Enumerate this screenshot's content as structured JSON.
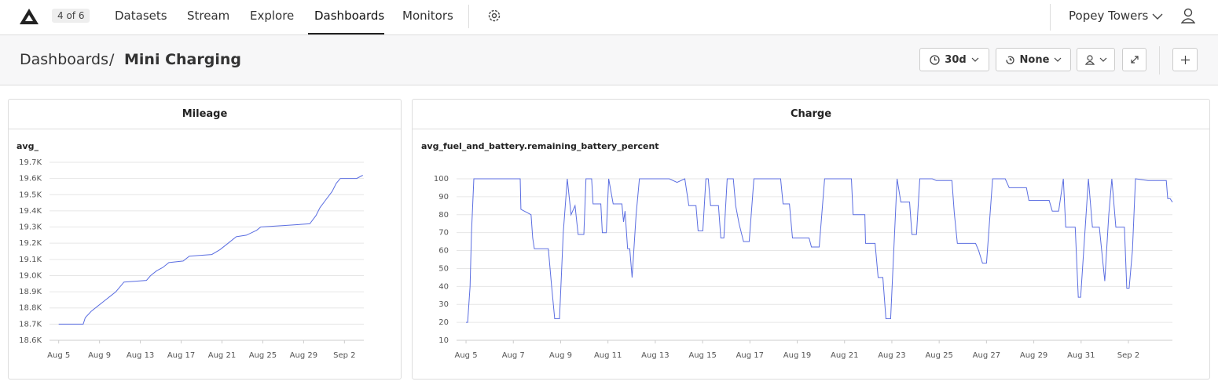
{
  "nav": {
    "counter": "4 of 6",
    "items": [
      "Datasets",
      "Stream",
      "Explore",
      "Dashboards",
      "Monitors"
    ],
    "team": "Popey Towers"
  },
  "header": {
    "breadcrumb": [
      "Dashboards",
      "Mini Charging"
    ],
    "time_range": "30d",
    "compare": "None"
  },
  "chart_data": [
    {
      "type": "line",
      "title": "Mileage",
      "grid": true,
      "series": [
        {
          "name": "avg_",
          "color": "#5b6ee1",
          "x": [
            217,
            219.4,
            219.6,
            220.2,
            220.8,
            221.4,
            222,
            222.6,
            223,
            223.4,
            225.6,
            226,
            226.6,
            227.2,
            227.8,
            229.2,
            229.8,
            232,
            232.8,
            233.6,
            234.4,
            235.4,
            236.4,
            236.8,
            239.2,
            241.6,
            242.2,
            242.6,
            243.2,
            243.8,
            244.2,
            244.6,
            246.2,
            246.8
          ],
          "values": [
            18700,
            18700,
            18740,
            18780,
            18810,
            18840,
            18870,
            18900,
            18930,
            18960,
            18970,
            19000,
            19030,
            19050,
            19080,
            19090,
            19120,
            19130,
            19160,
            19200,
            19240,
            19250,
            19280,
            19300,
            19310,
            19320,
            19370,
            19420,
            19470,
            19520,
            19570,
            19600,
            19600,
            19620
          ]
        }
      ],
      "xlim": [
        216.1,
        246.9
      ],
      "xticks": [
        {
          "value": 217,
          "label": "Aug 5"
        },
        {
          "value": 221,
          "label": "Aug 9"
        },
        {
          "value": 225,
          "label": "Aug 13"
        },
        {
          "value": 229,
          "label": "Aug 17"
        },
        {
          "value": 233,
          "label": "Aug 21"
        },
        {
          "value": 237,
          "label": "Aug 25"
        },
        {
          "value": 241,
          "label": "Aug 29"
        },
        {
          "value": 245,
          "label": "Sep 2"
        }
      ],
      "ylim": [
        18600,
        19700
      ],
      "yticks": [
        {
          "value": 18600,
          "label": "18.6K"
        },
        {
          "value": 18700,
          "label": "18.7K"
        },
        {
          "value": 18800,
          "label": "18.8K"
        },
        {
          "value": 18900,
          "label": "18.9K"
        },
        {
          "value": 19000,
          "label": "19.0K"
        },
        {
          "value": 19100,
          "label": "19.1K"
        },
        {
          "value": 19200,
          "label": "19.2K"
        },
        {
          "value": 19300,
          "label": "19.3K"
        },
        {
          "value": 19400,
          "label": "19.4K"
        },
        {
          "value": 19500,
          "label": "19.5K"
        },
        {
          "value": 19600,
          "label": "19.6K"
        },
        {
          "value": 19700,
          "label": "19.7K"
        }
      ]
    },
    {
      "type": "line",
      "title": "Charge",
      "grid": true,
      "series": [
        {
          "name": "avg_fuel_and_battery.remaining_battery_percent",
          "color": "#5b6ee1",
          "x": [
            217.0,
            217.07,
            217.17,
            217.23,
            217.33,
            219.29,
            219.32,
            219.75,
            219.82,
            219.89,
            220.48,
            220.62,
            220.75,
            220.95,
            221.11,
            221.28,
            221.44,
            221.61,
            221.74,
            221.98,
            222.07,
            222.31,
            222.37,
            222.7,
            222.76,
            222.93,
            223.03,
            223.22,
            223.59,
            223.66,
            223.72,
            223.83,
            223.92,
            224.02,
            224.19,
            224.33,
            225.59,
            225.92,
            226.25,
            226.42,
            226.72,
            226.81,
            227.01,
            227.14,
            227.24,
            227.34,
            227.67,
            227.77,
            227.9,
            228.04,
            228.3,
            228.4,
            228.54,
            228.73,
            228.97,
            229.17,
            230.3,
            230.4,
            230.67,
            230.8,
            231.5,
            231.6,
            231.93,
            232.16,
            233.29,
            233.36,
            233.86,
            233.89,
            234.29,
            234.42,
            234.62,
            234.75,
            234.95,
            235.22,
            235.38,
            235.75,
            235.85,
            236.04,
            236.18,
            236.71,
            236.88,
            237.54,
            237.64,
            237.77,
            238.54,
            238.67,
            238.83,
            239.0,
            239.26,
            239.79,
            239.96,
            240.69,
            240.79,
            241.65,
            241.78,
            242.05,
            242.25,
            242.35,
            242.75,
            242.88,
            242.98,
            243.21,
            243.31,
            243.48,
            243.77,
            244.0,
            244.17,
            244.3,
            244.47,
            244.83,
            244.93,
            245.03,
            245.17,
            245.3,
            245.83,
            246.6,
            246.66,
            246.76,
            246.86
          ],
          "values": [
            20,
            20,
            40,
            70,
            100,
            100,
            83,
            80,
            67,
            61,
            61,
            40,
            22,
            22,
            70,
            100,
            80,
            85,
            69,
            69,
            100,
            100,
            86,
            86,
            70,
            70,
            100,
            86,
            86,
            76,
            82,
            61,
            61,
            45,
            80,
            100,
            100,
            98,
            100,
            85,
            85,
            71,
            71,
            100,
            100,
            85,
            85,
            67,
            67,
            100,
            100,
            85,
            75,
            65,
            65,
            100,
            100,
            86,
            86,
            67,
            67,
            62,
            62,
            100,
            100,
            80,
            80,
            64,
            64,
            45,
            45,
            22,
            22,
            100,
            87,
            87,
            69,
            69,
            100,
            100,
            99,
            99,
            81,
            64,
            64,
            60,
            53,
            53,
            100,
            100,
            95,
            95,
            88,
            88,
            82,
            82,
            100,
            73,
            73,
            34,
            34,
            80,
            100,
            73,
            73,
            43,
            80,
            100,
            73,
            73,
            39,
            39,
            60,
            100,
            99,
            99,
            89,
            89,
            87
          ]
        }
      ],
      "xlim": [
        216.6,
        246.86
      ],
      "xticks": [
        {
          "value": 217,
          "label": "Aug 5"
        },
        {
          "value": 219,
          "label": "Aug 7"
        },
        {
          "value": 221,
          "label": "Aug 9"
        },
        {
          "value": 223,
          "label": "Aug 11"
        },
        {
          "value": 225,
          "label": "Aug 13"
        },
        {
          "value": 227,
          "label": "Aug 15"
        },
        {
          "value": 229,
          "label": "Aug 17"
        },
        {
          "value": 231,
          "label": "Aug 19"
        },
        {
          "value": 233,
          "label": "Aug 21"
        },
        {
          "value": 235,
          "label": "Aug 23"
        },
        {
          "value": 237,
          "label": "Aug 25"
        },
        {
          "value": 239,
          "label": "Aug 27"
        },
        {
          "value": 241,
          "label": "Aug 29"
        },
        {
          "value": 243,
          "label": "Aug 31"
        },
        {
          "value": 245,
          "label": "Sep 2"
        }
      ],
      "ylim": [
        10,
        100
      ],
      "yticks": [
        10,
        20,
        30,
        40,
        50,
        60,
        70,
        80,
        90,
        100
      ]
    }
  ]
}
